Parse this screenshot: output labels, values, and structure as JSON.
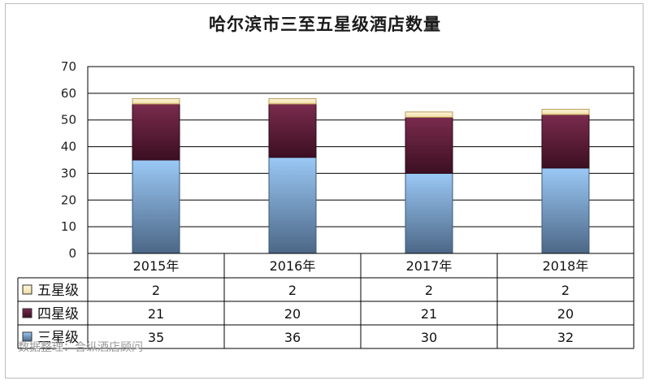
{
  "chart_data": {
    "type": "bar",
    "stacked": true,
    "title": "哈尔滨市三至五星级酒店数量",
    "categories": [
      "2015年",
      "2016年",
      "2017年",
      "2018年"
    ],
    "series": [
      {
        "name": "三星级",
        "values": [
          35,
          36,
          30,
          32
        ],
        "color": "#7aa6d8"
      },
      {
        "name": "四星级",
        "values": [
          21,
          20,
          21,
          20
        ],
        "color": "#6b2140"
      },
      {
        "name": "五星级",
        "values": [
          2,
          2,
          2,
          2
        ],
        "color": "#f6ecc2"
      }
    ],
    "table_order": [
      "五星级",
      "四星级",
      "三星级"
    ],
    "ylim": [
      0,
      70
    ],
    "yticks": [
      0,
      10,
      20,
      30,
      40,
      50,
      60,
      70
    ],
    "grid": true,
    "legend": "data-table"
  },
  "source_note": "数据整理：合纵酒店顾问"
}
